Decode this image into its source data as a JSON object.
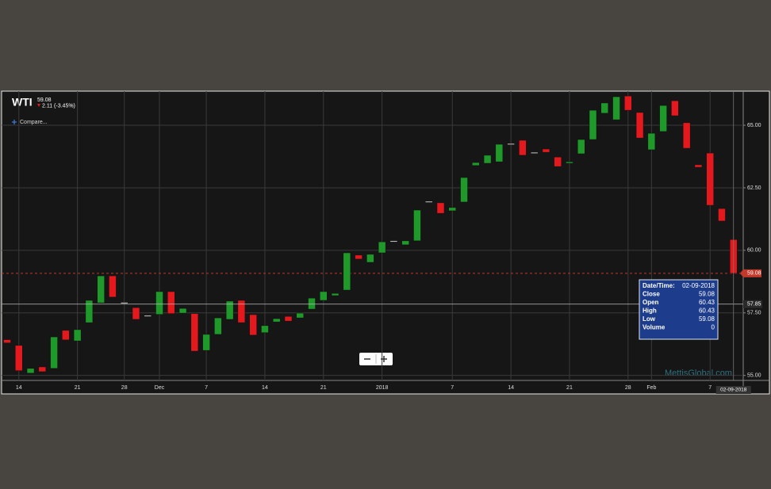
{
  "chart_data": {
    "type": "candlestick",
    "symbol": "WTI",
    "last_price": 59.08,
    "change": "2.11 (-3.45%)",
    "compare_label": "Compare...",
    "watermark": "MettisGlobal.com",
    "categories": [
      null,
      "14",
      null,
      null,
      null,
      null,
      "21",
      null,
      null,
      null,
      "28",
      null,
      null,
      "Dec",
      null,
      null,
      null,
      "7",
      null,
      null,
      null,
      null,
      "14",
      null,
      null,
      null,
      null,
      "21",
      null,
      null,
      null,
      null,
      "2018",
      null,
      null,
      null,
      null,
      null,
      "7",
      null,
      null,
      null,
      null,
      "14",
      null,
      null,
      null,
      null,
      "21",
      null,
      null,
      null,
      null,
      "28",
      null,
      "Feb",
      null,
      null,
      null,
      null,
      "7",
      null,
      null
    ],
    "open": [
      56.43,
      56.2,
      55.09,
      55.34,
      55.28,
      56.8,
      56.38,
      57.11,
      57.9,
      58.98,
      57.92,
      57.71,
      57.4,
      57.44,
      58.35,
      57.49,
      57.47,
      56.0,
      56.64,
      57.24,
      58.0,
      57.43,
      56.71,
      57.14,
      57.36,
      57.3,
      57.65,
      58.0,
      58.19,
      58.41,
      59.81,
      59.52,
      59.9,
      60.38,
      60.22,
      60.38,
      61.96,
      61.9,
      61.58,
      61.93,
      63.39,
      63.48,
      63.54,
      64.27,
      64.4,
      63.92,
      64.05,
      63.73,
      63.48,
      63.86,
      64.43,
      65.48,
      65.22,
      66.17,
      65.51,
      64.02,
      64.75,
      65.98,
      65.1,
      63.42,
      63.89,
      61.67,
      60.43
    ],
    "close": [
      56.3,
      55.19,
      55.28,
      55.15,
      56.54,
      56.42,
      56.83,
      58.0,
      58.98,
      58.13,
      57.92,
      57.24,
      57.4,
      58.35,
      57.47,
      57.68,
      55.97,
      56.64,
      57.3,
      57.97,
      57.11,
      56.61,
      56.99,
      57.27,
      57.17,
      57.49,
      58.09,
      58.35,
      58.28,
      59.9,
      59.65,
      59.84,
      60.34,
      60.38,
      60.38,
      61.61,
      61.96,
      61.48,
      61.71,
      62.91,
      63.51,
      63.8,
      64.24,
      64.27,
      63.8,
      63.92,
      63.92,
      63.35,
      63.54,
      64.43,
      65.6,
      65.89,
      66.14,
      65.6,
      64.49,
      64.68,
      65.79,
      65.38,
      64.08,
      63.32,
      61.8,
      61.17,
      59.08
    ],
    "up_color": "#1f9a2a",
    "down_color": "#e3191d",
    "flat_color": "#cfcfcf",
    "ylim": [
      54.8,
      66.3
    ],
    "yticks": [
      {
        "value": 55,
        "label": "55.00"
      },
      {
        "value": 57.5,
        "label": "57.50"
      },
      {
        "value": 60,
        "label": "60.00"
      },
      {
        "value": 62.5,
        "label": "62.50"
      },
      {
        "value": 65,
        "label": "65.00"
      }
    ],
    "grid": true,
    "crosshair": {
      "value": 57.85,
      "label": "57.85",
      "date": "02-09-2018"
    },
    "tooltip": [
      {
        "label": "Date/Time:",
        "value": "02-09-2018"
      },
      {
        "label": "Close",
        "value": 59.08
      },
      {
        "label": "Open",
        "value": 60.43
      },
      {
        "label": "High",
        "value": 60.43
      },
      {
        "label": "Low",
        "value": 59.08
      },
      {
        "label": "Volume",
        "value": 0
      }
    ]
  }
}
